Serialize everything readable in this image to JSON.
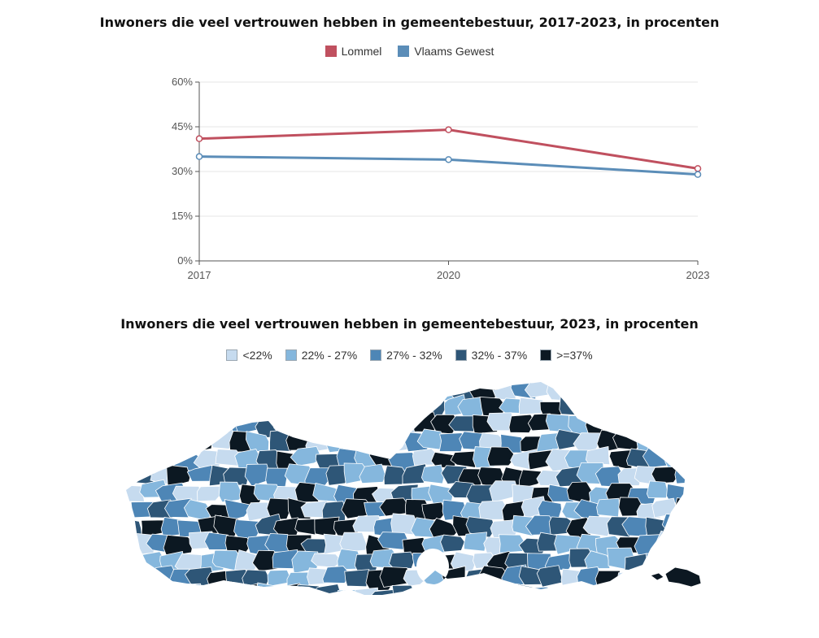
{
  "chart_data": [
    {
      "type": "line",
      "title": "Inwoners die veel vertrouwen hebben in gemeentebestuur, 2017-2023, in procenten",
      "x": [
        "2017",
        "2020",
        "2023"
      ],
      "series": [
        {
          "name": "Lommel",
          "color": "#c0505f",
          "values": [
            41,
            44,
            31
          ]
        },
        {
          "name": "Vlaams Gewest",
          "color": "#5b8db8",
          "values": [
            35,
            34,
            29
          ]
        }
      ],
      "y_ticks": [
        "0%",
        "15%",
        "30%",
        "45%",
        "60%"
      ],
      "y_tick_values": [
        0,
        15,
        30,
        45,
        60
      ],
      "ylim": [
        0,
        60
      ],
      "xlabel": "",
      "ylabel": "",
      "grid": true,
      "legend": "top-center"
    },
    {
      "type": "choropleth",
      "title": "Inwoners die veel vertrouwen hebben in gemeentebestuur, 2023, in procenten",
      "legend": "top-center",
      "classes": [
        {
          "label": "<22%",
          "color": "#c6dbef"
        },
        {
          "label": "22% - 27%",
          "color": "#85b7dd"
        },
        {
          "label": "27% - 32%",
          "color": "#4e86b6"
        },
        {
          "label": "32% - 37%",
          "color": "#2e5677"
        },
        {
          "label": ">=37%",
          "color": "#0c1822"
        }
      ]
    }
  ]
}
